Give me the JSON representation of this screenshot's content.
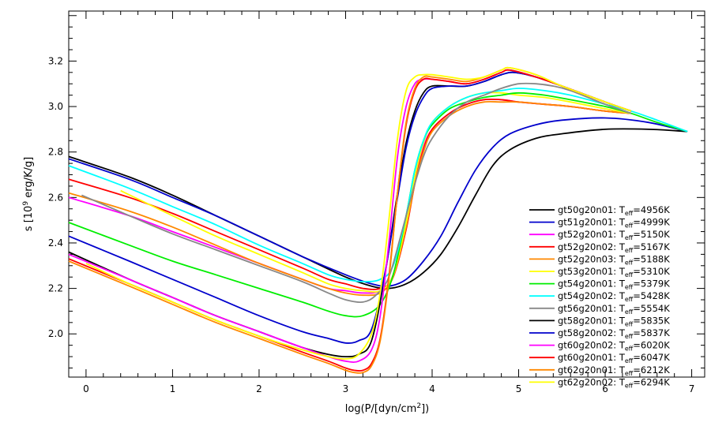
{
  "chart_data": {
    "type": "line",
    "xlabel_main": "log(P/[dyn/cm",
    "xlabel_sup": "2",
    "xlabel_end": "])",
    "ylabel_main": "s [10",
    "ylabel_sup": "9",
    "ylabel_end": " erg/K/g]",
    "xlim": [
      -0.2,
      7.15
    ],
    "ylim": [
      1.81,
      3.42
    ],
    "xticks": [
      0,
      1,
      2,
      3,
      4,
      5,
      6,
      7
    ],
    "yticks": [
      2.0,
      2.2,
      2.4,
      2.6,
      2.8,
      3.0,
      3.2
    ],
    "ytick_labels": [
      "2.0",
      "2.2",
      "2.4",
      "2.6",
      "2.8",
      "3.0",
      "3.2"
    ],
    "legend_position": "bottom-right",
    "series": [
      {
        "name_pre": "gt50g20n01: T",
        "name_sub": "eff",
        "name_post": "=4956K",
        "color": "#000000",
        "x": [
          -0.2,
          0.5,
          1.0,
          1.5,
          2.0,
          2.5,
          3.0,
          3.3,
          3.5,
          3.7,
          3.9,
          4.1,
          4.3,
          4.5,
          4.7,
          4.9,
          5.2,
          5.5,
          6.0,
          6.5,
          6.95
        ],
        "y": [
          2.78,
          2.69,
          2.61,
          2.52,
          2.43,
          2.34,
          2.25,
          2.21,
          2.2,
          2.22,
          2.27,
          2.35,
          2.47,
          2.61,
          2.74,
          2.81,
          2.86,
          2.88,
          2.9,
          2.9,
          2.89
        ]
      },
      {
        "name_pre": "gt51g20n01: T",
        "name_sub": "eff",
        "name_post": "=4999K",
        "color": "#0000cc",
        "x": [
          -0.2,
          0.5,
          1.0,
          1.5,
          2.0,
          2.5,
          3.0,
          3.3,
          3.5,
          3.7,
          3.9,
          4.1,
          4.3,
          4.5,
          4.7,
          4.9,
          5.2,
          5.5,
          6.0,
          6.5,
          6.95
        ],
        "y": [
          2.77,
          2.68,
          2.6,
          2.52,
          2.43,
          2.34,
          2.26,
          2.22,
          2.21,
          2.24,
          2.32,
          2.43,
          2.58,
          2.72,
          2.82,
          2.88,
          2.92,
          2.94,
          2.95,
          2.93,
          2.89
        ]
      },
      {
        "name_pre": "gt52g20n01: T",
        "name_sub": "eff",
        "name_post": "=5150K",
        "color": "#ff00ff",
        "x": [
          -0.2,
          0.5,
          1.0,
          1.5,
          2.0,
          2.5,
          2.8,
          3.0,
          3.2,
          3.4,
          3.55,
          3.7,
          3.8,
          3.9,
          4.0,
          4.2,
          4.4,
          4.6,
          4.8,
          5.0,
          5.3,
          5.6,
          6.0,
          6.3
        ],
        "y": [
          2.6,
          2.52,
          2.45,
          2.38,
          2.31,
          2.24,
          2.2,
          2.19,
          2.18,
          2.19,
          2.26,
          2.48,
          2.67,
          2.82,
          2.9,
          2.97,
          3.01,
          3.03,
          3.03,
          3.02,
          3.01,
          3.0,
          2.98,
          2.97
        ]
      },
      {
        "name_pre": "gt52g20n02: T",
        "name_sub": "eff",
        "name_post": "=5167K",
        "color": "#ff0000",
        "x": [
          -0.2,
          0.5,
          1.0,
          1.5,
          2.0,
          2.5,
          2.8,
          3.0,
          3.2,
          3.4,
          3.55,
          3.7,
          3.8,
          3.9,
          4.0,
          4.2,
          4.4,
          4.6,
          4.8,
          5.0,
          5.3,
          5.6,
          6.0,
          6.3
        ],
        "y": [
          2.68,
          2.6,
          2.53,
          2.45,
          2.37,
          2.29,
          2.24,
          2.22,
          2.2,
          2.2,
          2.25,
          2.46,
          2.66,
          2.81,
          2.9,
          2.97,
          3.01,
          3.03,
          3.03,
          3.02,
          3.01,
          3.0,
          2.98,
          2.97
        ]
      },
      {
        "name_pre": "gt52g20n03: T",
        "name_sub": "eff",
        "name_post": "=5188K",
        "color": "#ff8800",
        "x": [
          -0.2,
          0.5,
          1.0,
          1.5,
          2.0,
          2.5,
          2.8,
          3.0,
          3.2,
          3.4,
          3.55,
          3.7,
          3.8,
          3.9,
          4.0,
          4.2,
          4.4,
          4.6,
          4.8,
          5.0,
          5.3,
          5.6,
          6.0,
          6.3
        ],
        "y": [
          2.62,
          2.54,
          2.47,
          2.39,
          2.31,
          2.24,
          2.2,
          2.18,
          2.17,
          2.18,
          2.25,
          2.47,
          2.66,
          2.8,
          2.89,
          2.96,
          3.0,
          3.02,
          3.02,
          3.02,
          3.01,
          3.0,
          2.98,
          2.97
        ]
      },
      {
        "name_pre": "gt53g20n01: T",
        "name_sub": "eff",
        "name_post": "=5310K",
        "color": "#ffff00",
        "x": [
          0.4,
          1.0,
          1.5,
          2.0,
          2.5,
          2.8,
          3.0,
          3.2,
          3.4,
          3.55,
          3.7,
          3.8,
          3.9,
          4.0,
          4.2,
          4.4,
          4.6,
          4.8,
          5.0,
          5.3,
          5.6,
          6.0,
          6.3
        ],
        "y": [
          2.63,
          2.52,
          2.43,
          2.35,
          2.27,
          2.22,
          2.2,
          2.19,
          2.19,
          2.26,
          2.49,
          2.69,
          2.84,
          2.93,
          3.0,
          3.04,
          3.06,
          3.06,
          3.05,
          3.04,
          3.02,
          2.99,
          2.97
        ]
      },
      {
        "name_pre": "gt54g20n01: T",
        "name_sub": "eff",
        "name_post": "=5379K",
        "color": "#00ee00",
        "x": [
          -0.2,
          0.5,
          1.0,
          1.5,
          2.0,
          2.5,
          2.8,
          3.0,
          3.2,
          3.4,
          3.55,
          3.7,
          3.8,
          3.9,
          4.0,
          4.2,
          4.4,
          4.6,
          4.8,
          5.0,
          5.3,
          5.6,
          6.0,
          6.3,
          6.6,
          6.95
        ],
        "y": [
          2.49,
          2.39,
          2.32,
          2.26,
          2.2,
          2.14,
          2.1,
          2.08,
          2.08,
          2.13,
          2.26,
          2.52,
          2.72,
          2.85,
          2.92,
          2.99,
          3.02,
          3.04,
          3.05,
          3.06,
          3.05,
          3.03,
          3.0,
          2.97,
          2.93,
          2.89
        ]
      },
      {
        "name_pre": "gt54g20n02: T",
        "name_sub": "eff",
        "name_post": "=5428K",
        "color": "#00ffff",
        "x": [
          -0.2,
          0.5,
          1.0,
          1.5,
          2.0,
          2.5,
          2.8,
          3.0,
          3.2,
          3.4,
          3.55,
          3.7,
          3.8,
          3.9,
          4.0,
          4.2,
          4.4,
          4.6,
          4.8,
          5.0,
          5.3,
          5.6,
          6.0,
          6.3,
          6.6,
          6.95
        ],
        "y": [
          2.74,
          2.64,
          2.56,
          2.48,
          2.39,
          2.31,
          2.26,
          2.24,
          2.23,
          2.24,
          2.3,
          2.52,
          2.72,
          2.85,
          2.93,
          3.0,
          3.04,
          3.06,
          3.07,
          3.08,
          3.07,
          3.05,
          3.01,
          2.98,
          2.94,
          2.89
        ]
      },
      {
        "name_pre": "gt56g20n01: T",
        "name_sub": "eff",
        "name_post": "=5554K",
        "color": "#888888",
        "x": [
          -0.05,
          0.5,
          1.0,
          1.5,
          2.0,
          2.5,
          2.8,
          3.0,
          3.2,
          3.35,
          3.5,
          3.65,
          3.8,
          3.9,
          4.0,
          4.2,
          4.4,
          4.6,
          4.8,
          5.0,
          5.2,
          5.4,
          5.6,
          6.0,
          6.3
        ],
        "y": [
          2.61,
          2.52,
          2.44,
          2.37,
          2.3,
          2.23,
          2.18,
          2.15,
          2.14,
          2.17,
          2.25,
          2.45,
          2.66,
          2.78,
          2.86,
          2.96,
          3.02,
          3.05,
          3.08,
          3.1,
          3.1,
          3.09,
          3.07,
          3.01,
          2.97
        ]
      },
      {
        "name_pre": "gt58g20n01: T",
        "name_sub": "eff",
        "name_post": "=5835K",
        "color": "#000000",
        "x": [
          -0.2,
          0.5,
          1.0,
          1.5,
          2.0,
          2.5,
          2.8,
          3.0,
          3.15,
          3.3,
          3.45,
          3.6,
          3.7,
          3.8,
          3.9,
          4.0,
          4.2,
          4.4,
          4.6,
          4.8,
          4.95,
          5.2,
          5.5,
          6.0,
          6.3
        ],
        "y": [
          2.36,
          2.24,
          2.16,
          2.08,
          2.01,
          1.94,
          1.91,
          1.9,
          1.91,
          1.97,
          2.25,
          2.62,
          2.84,
          2.98,
          3.06,
          3.09,
          3.09,
          3.09,
          3.11,
          3.14,
          3.15,
          3.13,
          3.09,
          3.02,
          2.98
        ]
      },
      {
        "name_pre": "gt58g20n02: T",
        "name_sub": "eff",
        "name_post": "=5837K",
        "color": "#0000cc",
        "x": [
          -0.2,
          0.5,
          1.0,
          1.5,
          2.0,
          2.5,
          2.8,
          3.0,
          3.15,
          3.3,
          3.45,
          3.6,
          3.7,
          3.8,
          3.9,
          4.0,
          4.2,
          4.4,
          4.6,
          4.8,
          4.95,
          5.2,
          5.5,
          6.0,
          6.3
        ],
        "y": [
          2.43,
          2.32,
          2.24,
          2.16,
          2.08,
          2.01,
          1.98,
          1.96,
          1.97,
          2.02,
          2.26,
          2.6,
          2.82,
          2.96,
          3.04,
          3.08,
          3.09,
          3.09,
          3.11,
          3.14,
          3.15,
          3.13,
          3.09,
          3.02,
          2.98
        ]
      },
      {
        "name_pre": "gt60g20n02: T",
        "name_sub": "eff",
        "name_post": "=6020K",
        "color": "#ff00ff",
        "x": [
          -0.2,
          0.5,
          1.0,
          1.5,
          2.0,
          2.5,
          2.8,
          3.0,
          3.15,
          3.3,
          3.4,
          3.5,
          3.6,
          3.7,
          3.8,
          3.9,
          4.0,
          4.2,
          4.4,
          4.6,
          4.8,
          4.9,
          5.2,
          5.5,
          6.0,
          6.3
        ],
        "y": [
          2.35,
          2.24,
          2.16,
          2.08,
          2.01,
          1.94,
          1.9,
          1.88,
          1.88,
          1.93,
          2.08,
          2.4,
          2.78,
          3.0,
          3.1,
          3.12,
          3.12,
          3.11,
          3.1,
          3.12,
          3.15,
          3.16,
          3.13,
          3.09,
          3.02,
          2.98
        ]
      },
      {
        "name_pre": "gt60g20n01: T",
        "name_sub": "eff",
        "name_post": "=6047K",
        "color": "#ff0000",
        "x": [
          -0.2,
          0.5,
          1.0,
          1.5,
          2.0,
          2.5,
          2.8,
          3.0,
          3.1,
          3.2,
          3.3,
          3.4,
          3.5,
          3.6,
          3.7,
          3.8,
          3.9,
          4.0,
          4.2,
          4.4,
          4.6,
          4.8,
          4.9,
          5.2,
          5.5,
          6.0,
          6.3
        ],
        "y": [
          2.33,
          2.22,
          2.14,
          2.06,
          1.99,
          1.92,
          1.88,
          1.85,
          1.84,
          1.84,
          1.87,
          1.98,
          2.25,
          2.62,
          2.92,
          3.07,
          3.12,
          3.12,
          3.11,
          3.1,
          3.12,
          3.15,
          3.16,
          3.13,
          3.09,
          3.02,
          2.98
        ]
      },
      {
        "name_pre": "gt62g20n01: T",
        "name_sub": "eff",
        "name_post": "=6212K",
        "color": "#ff8800",
        "x": [
          -0.2,
          0.5,
          1.0,
          1.5,
          2.0,
          2.5,
          2.8,
          3.0,
          3.1,
          3.2,
          3.3,
          3.4,
          3.5,
          3.6,
          3.7,
          3.8,
          3.9,
          4.0,
          4.2,
          4.4,
          4.6,
          4.8,
          4.9,
          5.2,
          5.5,
          6.0,
          6.3
        ],
        "y": [
          2.32,
          2.21,
          2.13,
          2.05,
          1.98,
          1.91,
          1.87,
          1.84,
          1.83,
          1.83,
          1.86,
          1.97,
          2.24,
          2.62,
          2.93,
          3.08,
          3.13,
          3.13,
          3.12,
          3.11,
          3.13,
          3.16,
          3.17,
          3.14,
          3.09,
          3.02,
          2.98
        ]
      },
      {
        "name_pre": "gt62g20n02: T",
        "name_sub": "eff",
        "name_post": "=6294K",
        "color": "#ffff00",
        "x": [
          0.0,
          0.5,
          1.0,
          1.5,
          2.0,
          2.5,
          2.8,
          3.0,
          3.15,
          3.3,
          3.4,
          3.5,
          3.6,
          3.7,
          3.8,
          3.9,
          4.0,
          4.2,
          4.4,
          4.6,
          4.8,
          4.9,
          5.2,
          5.5,
          6.0,
          6.3
        ],
        "y": [
          2.31,
          2.22,
          2.14,
          2.06,
          1.99,
          1.93,
          1.9,
          1.89,
          1.91,
          2.0,
          2.18,
          2.5,
          2.86,
          3.07,
          3.13,
          3.14,
          3.14,
          3.13,
          3.12,
          3.13,
          3.16,
          3.17,
          3.14,
          3.09,
          3.02,
          2.98
        ]
      }
    ]
  }
}
